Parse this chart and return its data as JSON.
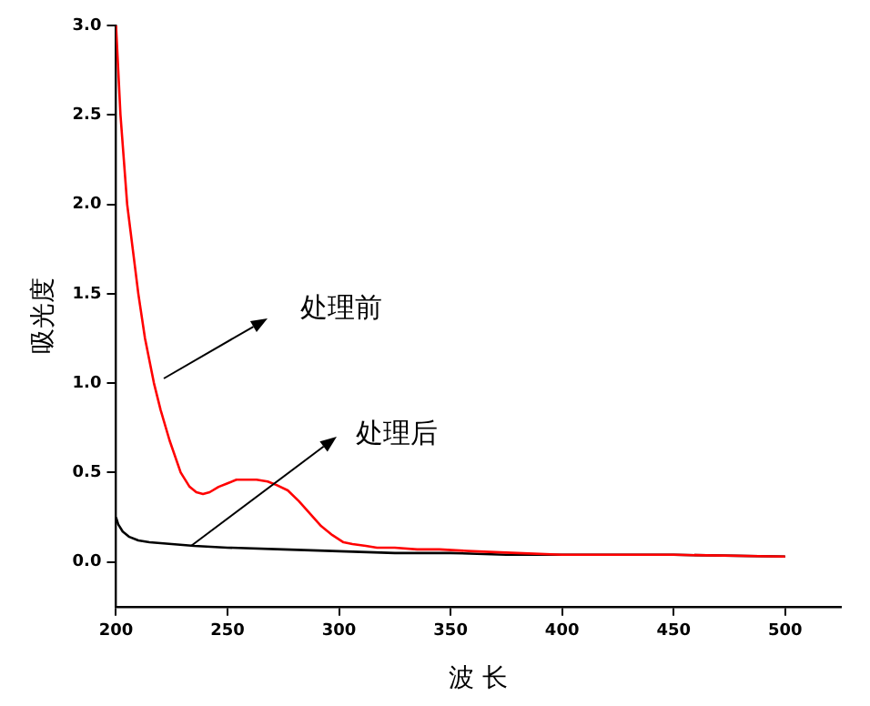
{
  "chart_data": {
    "type": "line",
    "xlabel": "波 长",
    "ylabel": "吸光度",
    "xlim": [
      200,
      525
    ],
    "xticks": [
      200,
      250,
      300,
      350,
      400,
      450,
      500
    ],
    "ylim": [
      -0.25,
      3.0
    ],
    "yticks": [
      {
        "value": 0,
        "label": "0.0"
      },
      {
        "value": 0.5,
        "label": "0.5"
      },
      {
        "value": 1,
        "label": "1.0"
      },
      {
        "value": 1.5,
        "label": "1.5"
      },
      {
        "value": 2,
        "label": "2.0"
      },
      {
        "value": 2.5,
        "label": "2.5"
      },
      {
        "value": 3,
        "label": "3.0"
      }
    ],
    "grid": false,
    "legend": false,
    "marker": "none",
    "line_style": "solid",
    "series": [
      {
        "color": "#ff0000",
        "x": [
          200,
          201,
          202,
          203.5,
          205,
          207.5,
          210,
          213,
          217,
          220,
          224,
          229,
          233,
          236,
          239,
          242,
          246,
          250,
          254,
          258,
          263,
          268,
          272,
          277,
          282,
          287,
          292,
          297,
          302,
          306,
          312,
          317,
          325,
          335,
          345,
          360,
          380,
          400,
          450,
          500
        ],
        "values": [
          3.0,
          2.75,
          2.5,
          2.25,
          2.0,
          1.75,
          1.5,
          1.25,
          1.0,
          0.85,
          0.68,
          0.5,
          0.42,
          0.39,
          0.38,
          0.39,
          0.42,
          0.44,
          0.46,
          0.46,
          0.46,
          0.45,
          0.43,
          0.4,
          0.34,
          0.27,
          0.2,
          0.15,
          0.11,
          0.1,
          0.09,
          0.08,
          0.08,
          0.07,
          0.07,
          0.06,
          0.05,
          0.04,
          0.04,
          0.03
        ]
      },
      {
        "color": "#000000",
        "x": [
          200,
          201,
          203,
          206,
          210,
          215,
          225,
          235,
          250,
          275,
          300,
          325,
          350,
          375,
          400,
          450,
          500
        ],
        "values": [
          0.25,
          0.21,
          0.17,
          0.14,
          0.12,
          0.11,
          0.1,
          0.09,
          0.08,
          0.07,
          0.06,
          0.05,
          0.05,
          0.04,
          0.04,
          0.04,
          0.03
        ]
      }
    ],
    "annotations": [
      "处理前",
      {
        "text": "处理后",
        "x": 234,
        "y": 0.09
      }
    ]
  }
}
